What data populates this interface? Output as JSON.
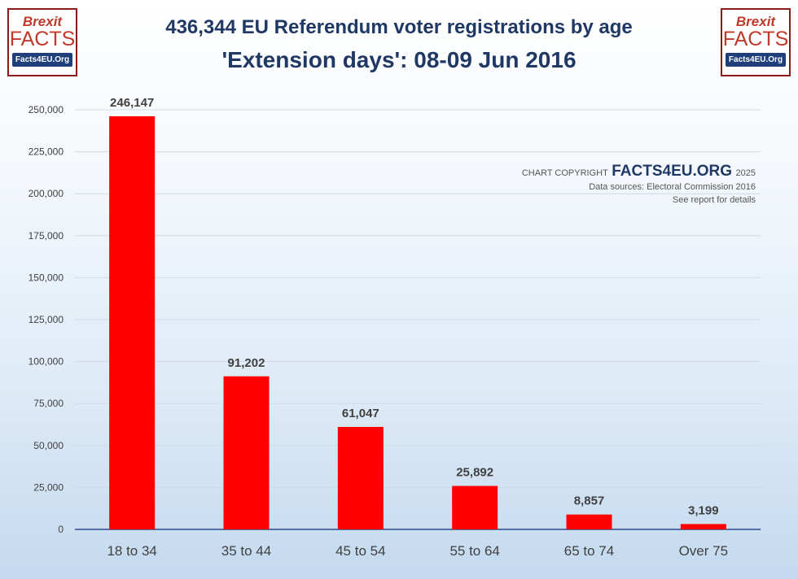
{
  "logo": {
    "line1": "Brexit",
    "line2": "FACTS",
    "line3": "Facts4EU.Org"
  },
  "title_line1": "436,344 EU Referendum voter registrations by age",
  "title_line2": "'Extension days': 08-09 Jun 2016",
  "copyright": {
    "prefix": "CHART COPYRIGHT",
    "brand": "FACTS4EU.ORG",
    "year": "2025",
    "sources": "Data sources: Electoral Commission 2016",
    "details": "See report for details"
  },
  "colors": {
    "bar": "#ff0000",
    "title": "#1f3864",
    "axis_line": "#2e4b8b"
  },
  "chart_data": {
    "type": "bar",
    "categories": [
      "18 to 34",
      "35 to 44",
      "45 to 54",
      "55 to 64",
      "65 to 74",
      "Over 75"
    ],
    "values": [
      246147,
      91202,
      61047,
      25892,
      8857,
      3199
    ],
    "data_labels": [
      "246,147",
      "91,202",
      "61,047",
      "25,892",
      "8,857",
      "3,199"
    ],
    "ylim": [
      0,
      250000
    ],
    "yticks": [
      0,
      25000,
      50000,
      75000,
      100000,
      125000,
      150000,
      175000,
      200000,
      225000,
      250000
    ],
    "ytick_labels": [
      "0",
      "25,000",
      "50,000",
      "75,000",
      "100,000",
      "125,000",
      "150,000",
      "175,000",
      "200,000",
      "225,000",
      "250,000"
    ],
    "grid": true,
    "legend": "none"
  }
}
